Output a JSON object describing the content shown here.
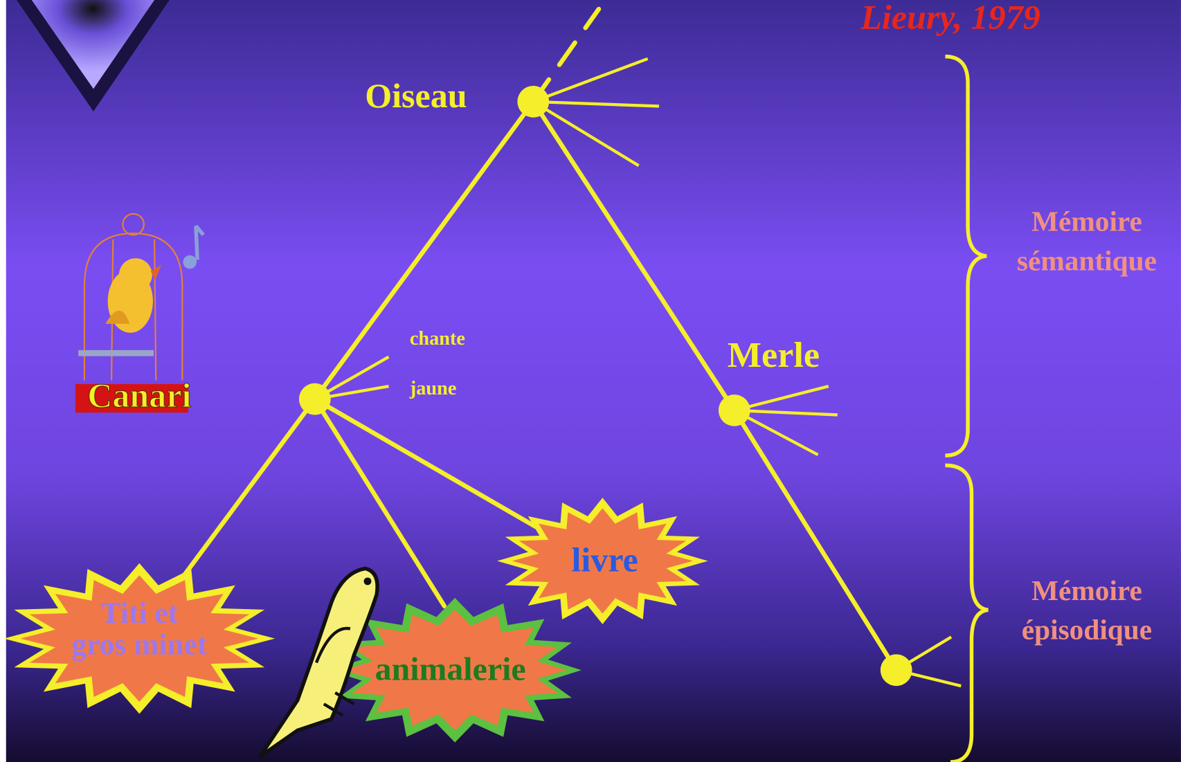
{
  "citation": "Lieury, 1979",
  "nodes": {
    "oiseau": "Oiseau",
    "merle": "Merle",
    "canari": "Canari",
    "chante": "chante",
    "jaune": "jaune",
    "livre": "livre",
    "animalerie": "animalerie",
    "titi": [
      "Titi et",
      "gros minet"
    ]
  },
  "memory": {
    "semantic": [
      "Mémoire",
      "sémantique"
    ],
    "episodic": [
      "Mémoire",
      "épisodique"
    ]
  }
}
